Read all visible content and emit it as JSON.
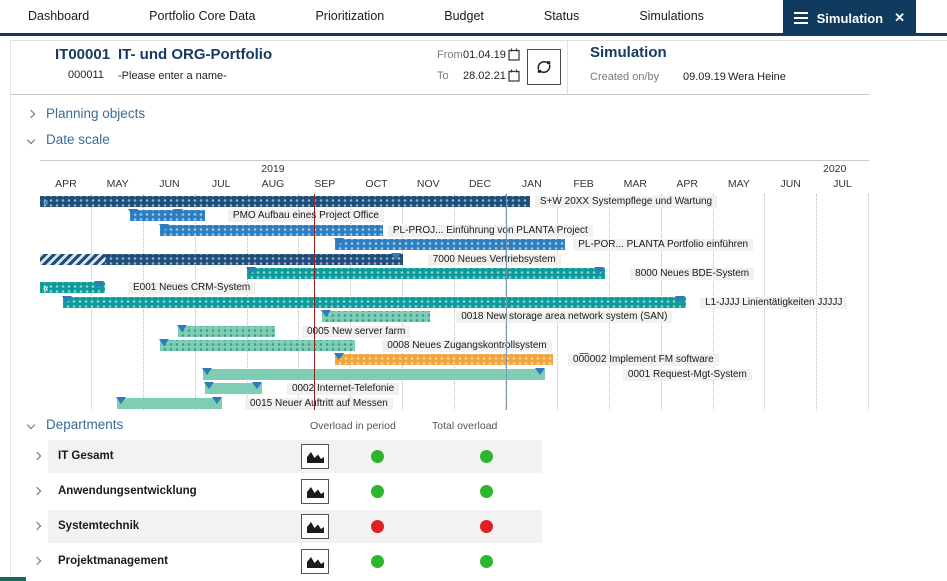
{
  "nav": {
    "tabs": [
      "Dashboard",
      "Portfolio Core Data",
      "Prioritization",
      "Budget",
      "Status",
      "Simulations"
    ],
    "active": {
      "label": "Simulation"
    }
  },
  "header": {
    "portfolio_id": "IT00001",
    "portfolio_number": "000011",
    "portfolio_title": "IT- und ORG-Portfolio",
    "portfolio_name_placeholder": "-Please enter a name-",
    "from_label": "From",
    "from_value": "01.04.19",
    "to_label": "To",
    "to_value": "28.02.21",
    "simulation_title": "Simulation",
    "created_label": "Created on/by",
    "created_date": "09.09.19",
    "created_by": "Wera Heine"
  },
  "sections": {
    "planning_objects": {
      "label": "Planning objects",
      "state": "collapsed"
    },
    "date_scale": {
      "label": "Date scale",
      "state": "expanded"
    },
    "departments": {
      "label": "Departments",
      "state": "expanded"
    }
  },
  "chart_data": {
    "type": "gantt",
    "timeline": {
      "months": [
        "APR",
        "MAY",
        "JUN",
        "JUL",
        "AUG",
        "SEP",
        "OCT",
        "NOV",
        "DEC",
        "JAN",
        "FEB",
        "MAR",
        "APR",
        "MAY",
        "JUN",
        "JUL"
      ],
      "years": [
        {
          "label": "2019",
          "center_month": 4.5
        },
        {
          "label": "2020",
          "center_month": 15.35
        }
      ],
      "today_line_month": 5.29,
      "year_boundary_month": 9.0,
      "today_line_color": "#8f1f1f",
      "year_boundary_color": "#7e95ac"
    },
    "styles": {
      "navy": {
        "color": "#1E4E79",
        "dots": "light",
        "overflow_color": "#6fb1e8"
      },
      "blue": {
        "color": "#2E7FC2",
        "dots": "light",
        "overflow_color": "#ffffff"
      },
      "teal": {
        "color": "#0C9C9C",
        "dots": "light",
        "overflow_color": "#ffffff"
      },
      "green_dotted": {
        "color": "#7FCDB5",
        "dots": "teal",
        "overflow_color": "#ffffff"
      },
      "orange": {
        "color": "#F2A53C",
        "dots": "light",
        "overflow_color": "#ffffff"
      },
      "green_solid": {
        "color": "#7FCDB5",
        "dots": "none",
        "overflow_color": "#ffffff"
      }
    },
    "tasks": [
      {
        "label": "S+W 20XX Systempflege und Wartung",
        "start_month": 0,
        "end_month": 9.47,
        "style": "navy",
        "markers_month": [],
        "label_pos_month": 9.56,
        "overflow_left": true
      },
      {
        "label": "PMO Aufbau eines Project Office",
        "start_month": 1.74,
        "end_month": 3.19,
        "style": "blue",
        "markers_month": [
          1.8,
          2.67
        ],
        "label_pos_month": 3.63
      },
      {
        "label": "PL-PROJ... Einführung von PLANTA Project",
        "start_month": 2.32,
        "end_month": 6.63,
        "style": "blue",
        "markers_month": [
          2.4
        ],
        "label_pos_month": 6.72
      },
      {
        "label": "PL-POR... PLANTA Portfolio einführen",
        "start_month": 5.7,
        "end_month": 10.14,
        "style": "blue",
        "markers_month": [
          5.78
        ],
        "label_pos_month": 10.3
      },
      {
        "label": "7000 Neues Vertriebsystem",
        "start_month": 0,
        "end_month": 7.01,
        "style": "navy",
        "markers_month": [
          6.88
        ],
        "label_pos_month": 7.49,
        "hatch_until_month": 1.26
      },
      {
        "label": "8000 Neues BDE-System",
        "start_month": 4.0,
        "end_month": 10.91,
        "style": "teal",
        "markers_month": [
          4.08,
          10.8
        ],
        "label_pos_month": 11.4
      },
      {
        "label": "E001 Neues CRM-System",
        "start_month": 0,
        "end_month": 1.26,
        "style": "teal",
        "markers_month": [
          1.14
        ],
        "label_pos_month": 1.7,
        "overflow_left": true
      },
      {
        "label": "L1-JJJJ Linientätigkeiten JJJJJ",
        "start_month": 0.44,
        "end_month": 12.48,
        "style": "teal",
        "markers_month": [
          0.52,
          12.36
        ],
        "label_pos_month": 12.75
      },
      {
        "label": "0018 New storage area network system (SAN)",
        "start_month": 5.45,
        "end_month": 7.53,
        "style": "green_dotted",
        "markers_month": [
          5.53
        ],
        "label_pos_month": 8.04
      },
      {
        "label": "0005 New server farm",
        "start_month": 2.67,
        "end_month": 4.54,
        "style": "green_dotted",
        "markers_month": [
          2.75
        ],
        "label_pos_month": 5.06
      },
      {
        "label": "0008 Neues Zugangskontrollsystem",
        "start_month": 2.32,
        "end_month": 6.08,
        "style": "green_dotted",
        "markers_month": [
          2.4
        ],
        "label_pos_month": 6.61
      },
      {
        "label": "000002 Implement FM software",
        "start_month": 5.7,
        "end_month": 9.91,
        "style": "orange",
        "markers_month": [
          5.78,
          10.51
        ],
        "label_pos_month": 10.2
      },
      {
        "label": "0001 Request-Mgt-System",
        "start_month": 3.15,
        "end_month": 9.76,
        "style": "green_solid",
        "markers_month": [
          3.23,
          9.66
        ],
        "label_pos_month": 11.26
      },
      {
        "label": "0002 Internet-Telefonie",
        "start_month": 3.19,
        "end_month": 4.29,
        "style": "green_solid",
        "markers_month": [
          3.27,
          4.19
        ],
        "label_pos_month": 4.77
      },
      {
        "label": "0015 Neuer Auftritt auf Messen",
        "start_month": 1.49,
        "end_month": 3.52,
        "style": "green_solid",
        "markers_month": [
          1.57,
          3.42
        ],
        "label_pos_month": 3.96
      }
    ]
  },
  "departments": {
    "columns": [
      "Overload in period",
      "Total overload"
    ],
    "status_colors": {
      "green": "#2DB52D",
      "red": "#E02020"
    },
    "rows": [
      {
        "name": "IT Gesamt",
        "overload_in_period": "green",
        "total_overload": "green"
      },
      {
        "name": "Anwendungsentwicklung",
        "overload_in_period": "green",
        "total_overload": "green"
      },
      {
        "name": "Systemtechnik",
        "overload_in_period": "red",
        "total_overload": "red"
      },
      {
        "name": "Projektmanagement",
        "overload_in_period": "green",
        "total_overload": "green"
      }
    ]
  }
}
